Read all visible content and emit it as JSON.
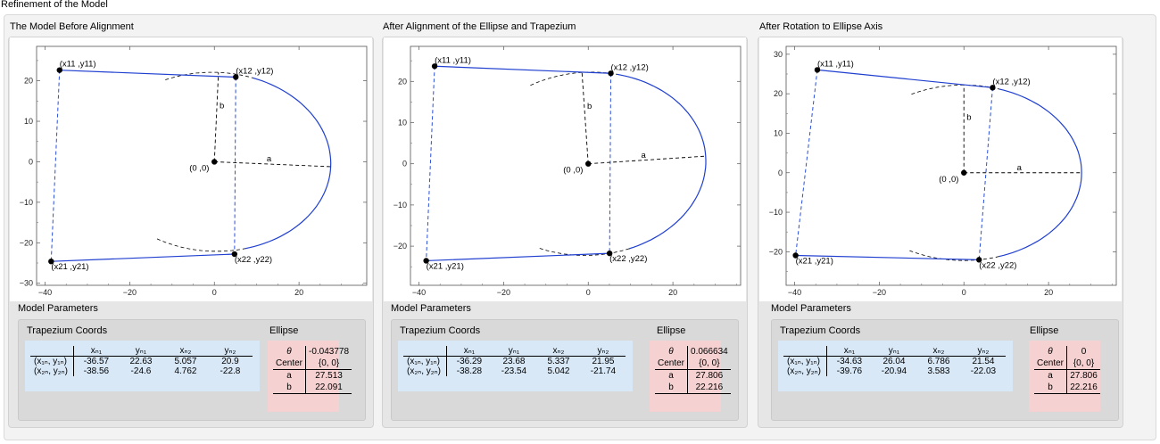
{
  "window_title": "Refinement of the Model",
  "panels": [
    {
      "title": "The Model Before Alignment",
      "params_title": "Model Parameters",
      "trap_title": "Trapezium Coords",
      "ell_title": "Ellipse",
      "chart_data": {
        "type": "line",
        "xlim": [
          -42,
          36
        ],
        "ylim": [
          -30.5,
          28.5
        ],
        "xticks": [
          -40,
          -20,
          0,
          20
        ],
        "yticks": [
          -30,
          -20,
          -10,
          0,
          10,
          20
        ],
        "ellipse": {
          "theta": -0.043778,
          "a": 27.513,
          "b": 22.091
        },
        "points": {
          "x11": [
            -36.57,
            22.63
          ],
          "y_": null,
          "x12": [
            5.057,
            20.9
          ],
          "x21": [
            -38.56,
            -24.6
          ],
          "x22": [
            4.762,
            -22.8
          ]
        },
        "labels": {
          "p11": "(x11 ,y11)",
          "p12": "(x12 ,y12)",
          "p21": "(x21 ,y21)",
          "p22": "(x22 ,y22)",
          "origin": "(0 ,0)",
          "a": "a",
          "b": "b"
        }
      },
      "trap": {
        "headers": [
          "xₙ₁",
          "yₙ₁",
          "xₙ₂",
          "yₙ₂"
        ],
        "rows": [
          {
            "label": "(x₁ₙ, y₁ₙ)",
            "values": [
              "-36.57",
              "22.63",
              "5.057",
              "20.9"
            ]
          },
          {
            "label": "(x₂ₙ, y₂ₙ)",
            "values": [
              "-38.56",
              "-24.6",
              "4.762",
              "-22.8"
            ]
          }
        ]
      },
      "ell": {
        "theta_label": "θ",
        "theta": "-0.043778",
        "center_label": "Center",
        "center": "{0, 0}",
        "a_label": "a",
        "a": "27.513",
        "b_label": "b",
        "b": "22.091"
      }
    },
    {
      "title": "After Alignment of the Ellipse and Trapezium",
      "params_title": "Model Parameters",
      "trap_title": "Trapezium Coords",
      "ell_title": "Ellipse",
      "chart_data": {
        "type": "line",
        "xlim": [
          -42,
          36
        ],
        "ylim": [
          -29.5,
          28.5
        ],
        "xticks": [
          -40,
          -20,
          0,
          20
        ],
        "yticks": [
          -20,
          -10,
          0,
          10,
          20
        ],
        "ellipse": {
          "theta": 0.066634,
          "a": 27.806,
          "b": 22.216
        },
        "points": {
          "x11": [
            -36.29,
            23.68
          ],
          "x12": [
            5.337,
            21.95
          ],
          "x21": [
            -38.28,
            -23.54
          ],
          "x22": [
            5.042,
            -21.74
          ]
        },
        "labels": {
          "p11": "(x11 ,y11)",
          "p12": "(x12 ,y12)",
          "p21": "(x21 ,y21)",
          "p22": "(x22 ,y22)",
          "origin": "(0 ,0)",
          "a": "a",
          "b": "b"
        }
      },
      "trap": {
        "headers": [
          "xₙ₁",
          "yₙ₁",
          "xₙ₂",
          "yₙ₂"
        ],
        "rows": [
          {
            "label": "(x₁ₙ, y₁ₙ)",
            "values": [
              "-36.29",
              "23.68",
              "5.337",
              "21.95"
            ]
          },
          {
            "label": "(x₂ₙ, y₂ₙ)",
            "values": [
              "-38.28",
              "-23.54",
              "5.042",
              "-21.74"
            ]
          }
        ]
      },
      "ell": {
        "theta_label": "θ",
        "theta": "0.066634",
        "center_label": "Center",
        "center": "{0, 0}",
        "a_label": "a",
        "a": "27.806",
        "b_label": "b",
        "b": "22.216"
      }
    },
    {
      "title": "After Rotation to Ellipse Axis",
      "params_title": "Model Parameters",
      "trap_title": "Trapezium Coords",
      "ell_title": "Ellipse",
      "chart_data": {
        "type": "line",
        "xlim": [
          -42,
          36
        ],
        "ylim": [
          -28.5,
          32
        ],
        "xticks": [
          -40,
          -20,
          0,
          20
        ],
        "yticks": [
          -20,
          -10,
          0,
          10,
          20,
          30
        ],
        "ellipse": {
          "theta": 0,
          "a": 27.806,
          "b": 22.216
        },
        "points": {
          "x11": [
            -34.63,
            26.04
          ],
          "x12": [
            6.786,
            21.54
          ],
          "x21": [
            -39.76,
            -20.94
          ],
          "x22": [
            3.583,
            -22.03
          ]
        },
        "labels": {
          "p11": "(x11 ,y11)",
          "p12": "(x12 ,y12)",
          "p21": "(x21 ,y21)",
          "p22": "(x22 ,y22)",
          "origin": "(0 ,0)",
          "a": "a",
          "b": "b"
        }
      },
      "trap": {
        "headers": [
          "xₙ₁",
          "yₙ₁",
          "xₙ₂",
          "yₙ₂"
        ],
        "rows": [
          {
            "label": "(x₁ₙ, y₁ₙ)",
            "values": [
              "-34.63",
              "26.04",
              "6.786",
              "21.54"
            ]
          },
          {
            "label": "(x₂ₙ, y₂ₙ)",
            "values": [
              "-39.76",
              "-20.94",
              "3.583",
              "-22.03"
            ]
          }
        ]
      },
      "ell": {
        "theta_label": "θ",
        "theta": "0",
        "center_label": "Center",
        "center": "{0, 0}",
        "a_label": "a",
        "a": "27.806",
        "b_label": "b",
        "b": "22.216"
      }
    }
  ],
  "colors": {
    "curve": "#1f3fd0",
    "dashed_blue": "#2a4fd8",
    "point": "#000000",
    "trap_bg": "#d8e8f7",
    "ell_bg": "#f6d1d1"
  }
}
